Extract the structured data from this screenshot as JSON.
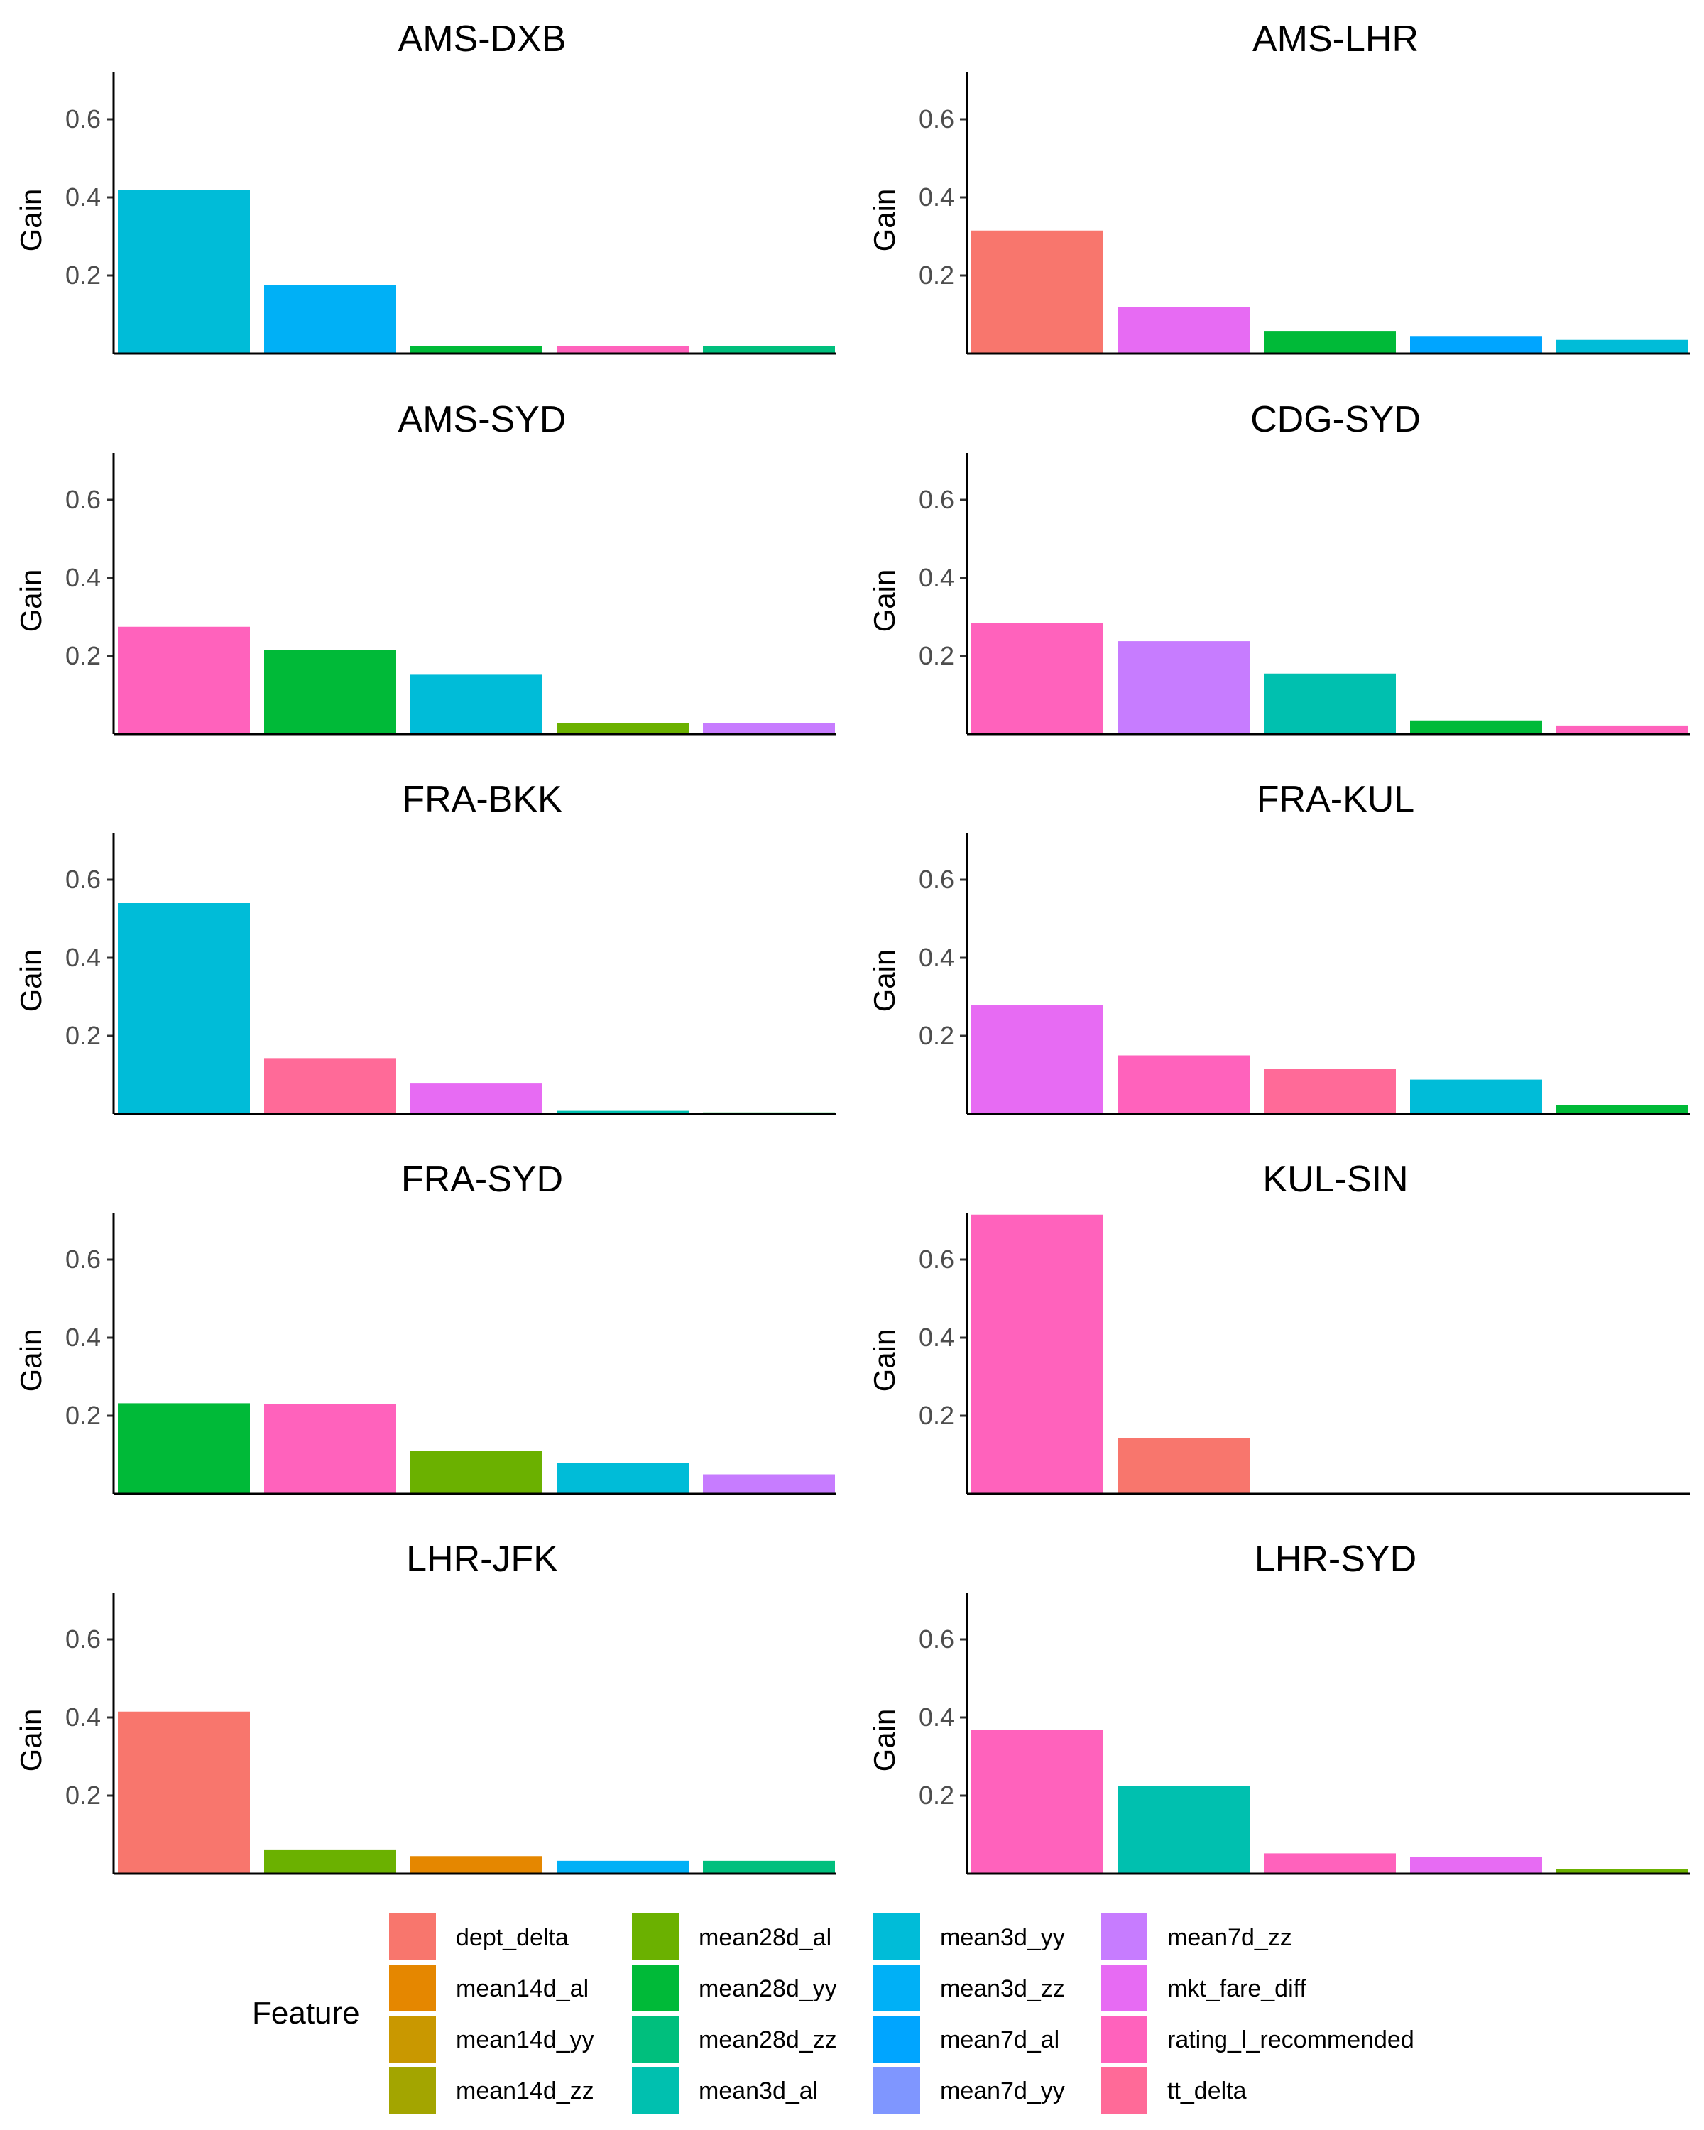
{
  "chart_data": {
    "type": "bar",
    "facet": true,
    "ylabel": "Gain",
    "xlabel": "",
    "ylim": [
      0,
      0.72
    ],
    "yticks": [
      0.2,
      0.4,
      0.6
    ],
    "ytick_labels": [
      "0.2",
      "0.4",
      "0.6"
    ],
    "legend": {
      "title": "Feature",
      "placement": "bottom",
      "entries": [
        {
          "name": "dept_delta",
          "color": "#F8766D"
        },
        {
          "name": "mean14d_al",
          "color": "#E58700"
        },
        {
          "name": "mean14d_yy",
          "color": "#C99800"
        },
        {
          "name": "mean14d_zz",
          "color": "#A3A500"
        },
        {
          "name": "mean28d_al",
          "color": "#6BB100"
        },
        {
          "name": "mean28d_yy",
          "color": "#00BA38"
        },
        {
          "name": "mean28d_zz",
          "color": "#00BF7D"
        },
        {
          "name": "mean3d_al",
          "color": "#00C0AF"
        },
        {
          "name": "mean3d_yy",
          "color": "#00BCD8"
        },
        {
          "name": "mean3d_zz",
          "color": "#00B0F6"
        },
        {
          "name": "mean7d_al",
          "color": "#00A5FF"
        },
        {
          "name": "mean7d_yy",
          "color": "#7F96FF"
        },
        {
          "name": "mean7d_zz",
          "color": "#C77CFF"
        },
        {
          "name": "mkt_fare_diff",
          "color": "#E76BF3"
        },
        {
          "name": "rating_l_recommended",
          "color": "#FF62BC"
        },
        {
          "name": "tt_delta",
          "color": "#FF6A98"
        }
      ]
    },
    "panels": [
      {
        "title": "AMS-DXB",
        "bars": [
          {
            "feature": "mean3d_yy",
            "value": 0.42
          },
          {
            "feature": "mean3d_zz",
            "value": 0.175
          },
          {
            "feature": "mean28d_yy",
            "value": 0.02
          },
          {
            "feature": "rating_l_recommended",
            "value": 0.02
          },
          {
            "feature": "mean28d_zz",
            "value": 0.02
          }
        ]
      },
      {
        "title": "AMS-LHR",
        "bars": [
          {
            "feature": "dept_delta",
            "value": 0.315
          },
          {
            "feature": "mkt_fare_diff",
            "value": 0.12
          },
          {
            "feature": "mean28d_yy",
            "value": 0.058
          },
          {
            "feature": "mean7d_al",
            "value": 0.045
          },
          {
            "feature": "mean3d_yy",
            "value": 0.035
          }
        ]
      },
      {
        "title": "AMS-SYD",
        "bars": [
          {
            "feature": "rating_l_recommended",
            "value": 0.275
          },
          {
            "feature": "mean28d_yy",
            "value": 0.215
          },
          {
            "feature": "mean3d_yy",
            "value": 0.152
          },
          {
            "feature": "mean28d_al",
            "value": 0.028
          },
          {
            "feature": "mean7d_zz",
            "value": 0.028
          }
        ]
      },
      {
        "title": "CDG-SYD",
        "bars": [
          {
            "feature": "rating_l_recommended",
            "value": 0.285
          },
          {
            "feature": "mean7d_zz",
            "value": 0.238
          },
          {
            "feature": "mean3d_al",
            "value": 0.155
          },
          {
            "feature": "mean28d_yy",
            "value": 0.035
          },
          {
            "feature": "rating_l_recommended",
            "value": 0.022
          }
        ]
      },
      {
        "title": "FRA-BKK",
        "bars": [
          {
            "feature": "mean3d_yy",
            "value": 0.54
          },
          {
            "feature": "tt_delta",
            "value": 0.143
          },
          {
            "feature": "mkt_fare_diff",
            "value": 0.078
          },
          {
            "feature": "mean3d_al",
            "value": 0.008
          },
          {
            "feature": "mean28d_yy",
            "value": 0.004
          }
        ]
      },
      {
        "title": "FRA-KUL",
        "bars": [
          {
            "feature": "mkt_fare_diff",
            "value": 0.28
          },
          {
            "feature": "rating_l_recommended",
            "value": 0.15
          },
          {
            "feature": "tt_delta",
            "value": 0.115
          },
          {
            "feature": "mean3d_yy",
            "value": 0.088
          },
          {
            "feature": "mean28d_yy",
            "value": 0.022
          }
        ]
      },
      {
        "title": "FRA-SYD",
        "bars": [
          {
            "feature": "mean28d_yy",
            "value": 0.232
          },
          {
            "feature": "rating_l_recommended",
            "value": 0.23
          },
          {
            "feature": "mean28d_al",
            "value": 0.11
          },
          {
            "feature": "mean3d_yy",
            "value": 0.08
          },
          {
            "feature": "mean7d_zz",
            "value": 0.05
          }
        ]
      },
      {
        "title": "KUL-SIN",
        "bars": [
          {
            "feature": "rating_l_recommended",
            "value": 0.715
          },
          {
            "feature": "dept_delta",
            "value": 0.142
          }
        ]
      },
      {
        "title": "LHR-JFK",
        "bars": [
          {
            "feature": "dept_delta",
            "value": 0.415
          },
          {
            "feature": "mean28d_al",
            "value": 0.062
          },
          {
            "feature": "mean14d_al",
            "value": 0.045
          },
          {
            "feature": "mean3d_zz",
            "value": 0.033
          },
          {
            "feature": "mean28d_zz",
            "value": 0.033
          }
        ]
      },
      {
        "title": "LHR-SYD",
        "bars": [
          {
            "feature": "rating_l_recommended",
            "value": 0.368
          },
          {
            "feature": "mean3d_al",
            "value": 0.225
          },
          {
            "feature": "rating_l_recommended",
            "value": 0.052
          },
          {
            "feature": "mkt_fare_diff",
            "value": 0.043
          },
          {
            "feature": "mean28d_al",
            "value": 0.012
          }
        ]
      }
    ]
  }
}
